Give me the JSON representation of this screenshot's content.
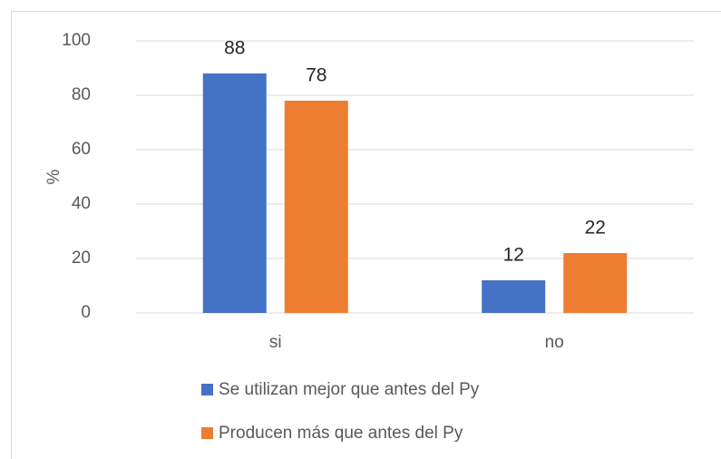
{
  "chart_data": {
    "type": "bar",
    "y_label": "%",
    "categories": [
      "si",
      "no"
    ],
    "series": [
      {
        "name": "Se utilizan mejor que antes del Py",
        "color": "#4472c4",
        "values": [
          88,
          12
        ]
      },
      {
        "name": "Producen más que antes del Py",
        "color": "#ed7d31",
        "values": [
          78,
          22
        ]
      }
    ],
    "ylim": [
      0,
      100
    ],
    "yticks": [
      0,
      20,
      40,
      60,
      80,
      100
    ],
    "grid": true,
    "legend": "bottom"
  }
}
